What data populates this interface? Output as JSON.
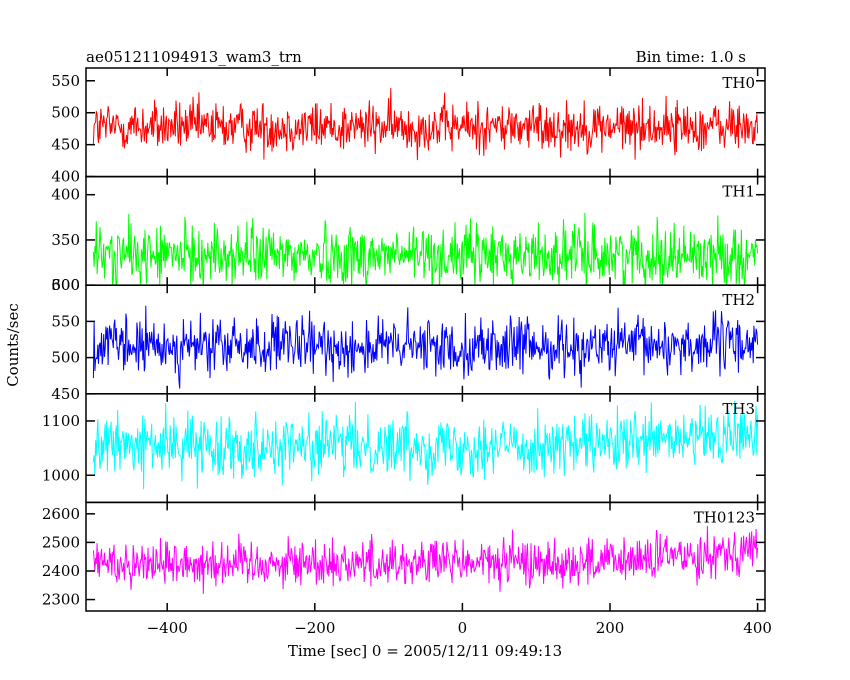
{
  "header": {
    "title": "ae051211094913_wam3_trn",
    "bin_time": "Bin time: 1.0 s"
  },
  "chart_data": {
    "type": "line",
    "xlabel": "Time [sec] 0 = 2005/12/11 09:49:13",
    "ylabel": "Counts/sec",
    "xlim": [
      -510,
      410
    ],
    "x_ticks": [
      -400,
      -200,
      0,
      200,
      400
    ],
    "x_tick_labels": [
      "−400",
      "−200",
      "0",
      "200",
      "400"
    ],
    "x_start": -500,
    "x_end": 400,
    "bin_time": 1.0,
    "panels": [
      {
        "name": "TH0",
        "color": "#ff0000",
        "ylim": [
          400,
          570
        ],
        "y_ticks": [
          400,
          450,
          500,
          550
        ],
        "y_tick_labels": [
          "400",
          "450",
          "500",
          "550"
        ],
        "mean": 478,
        "noise": 20,
        "trend": 0
      },
      {
        "name": "TH1",
        "color": "#00ff00",
        "ylim": [
          300,
          420
        ],
        "y_ticks": [
          300,
          350,
          400
        ],
        "y_tick_labels": [
          "300",
          "350",
          "400"
        ],
        "mean": 333,
        "noise": 17,
        "trend": 0
      },
      {
        "name": "TH2",
        "color": "#0000ff",
        "ylim": [
          450,
          600
        ],
        "y_ticks": [
          450,
          500,
          550,
          600
        ],
        "y_tick_labels": [
          "450",
          "500",
          "550",
          "600"
        ],
        "mean": 515,
        "noise": 20,
        "trend": 5
      },
      {
        "name": "TH3",
        "color": "#00ffff",
        "ylim": [
          950,
          1150
        ],
        "y_ticks": [
          1000,
          1100
        ],
        "y_tick_labels": [
          "1000",
          "1100"
        ],
        "mean": 1055,
        "noise": 28,
        "trend": 20
      },
      {
        "name": "TH0123",
        "color": "#ff00ff",
        "ylim": [
          2260,
          2640
        ],
        "y_ticks": [
          2300,
          2400,
          2500,
          2600
        ],
        "y_tick_labels": [
          "2300",
          "2400",
          "2500",
          "2600"
        ],
        "mean": 2430,
        "noise": 42,
        "trend": 50
      }
    ]
  }
}
